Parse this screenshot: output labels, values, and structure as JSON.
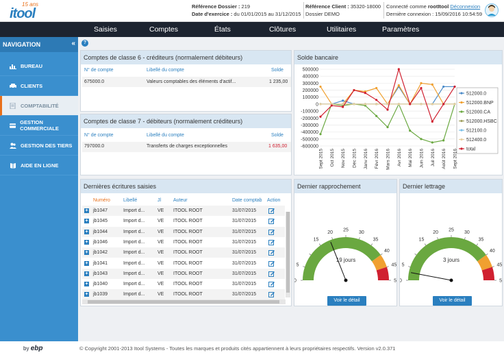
{
  "header": {
    "logo_ans": "15 ans",
    "logo_word": "itool",
    "ref_dossier_label": "Référence Dossier :",
    "ref_dossier_value": "219",
    "date_label": "Date d'exercice :",
    "date_value": "du 01/01/2015 au 31/12/2015",
    "ref_client_label": "Référence Client :",
    "ref_client_value": "35320-18000",
    "dossier_name": "Dossier DEMO",
    "connected_label": "Connecté comme",
    "connected_user": "rootItool",
    "logout": "Déconnexion",
    "last_login": "Dernière connexion : 15/09/2016 10:54:59"
  },
  "topnav": [
    "Saisies",
    "Comptes",
    "États",
    "Clôtures",
    "Utilitaires",
    "Paramètres"
  ],
  "sidebar": {
    "title": "NAVIGATION",
    "collapse": "«",
    "items": [
      {
        "label": "BUREAU",
        "icon": "chart-icon"
      },
      {
        "label": "CLIENTS",
        "icon": "car-icon"
      },
      {
        "label": "COMPTABILITÉ",
        "icon": "document-icon"
      },
      {
        "label": "GESTION COMMERCIALE",
        "icon": "card-icon"
      },
      {
        "label": "GESTION DES TIERS",
        "icon": "users-icon"
      },
      {
        "label": "AIDE EN LIGNE",
        "icon": "book-icon"
      }
    ]
  },
  "classe6": {
    "title": "Comptes de classe 6 - créditeurs (normalement débiteurs)",
    "col_num": "N° de compte",
    "col_label": "Libellé du compte",
    "col_solde": "Solde",
    "rows": [
      {
        "num": "675000.0",
        "label": "Valeurs comptables des éléments d'actif...",
        "solde": "1 235,00"
      }
    ]
  },
  "classe7": {
    "title": "Comptes de classe 7 - débiteurs (normalement créditeurs)",
    "col_num": "N° de compte",
    "col_label": "Libellé du compte",
    "col_solde": "Solde",
    "rows": [
      {
        "num": "797000.0",
        "label": "Transferts de charges exceptionnelles",
        "solde": "1 635,00"
      }
    ]
  },
  "ecritures": {
    "title": "Dernières écritures saisies",
    "columns": [
      "Numéro",
      "Libellé",
      "Jl",
      "Auteur",
      "Date comptab",
      "Action"
    ],
    "rows": [
      [
        "jb1047",
        "Import d...",
        "VE",
        "ITOOL ROOT",
        "31/07/2015"
      ],
      [
        "jb1045",
        "Import d...",
        "VE",
        "ITOOL ROOT",
        "31/07/2015"
      ],
      [
        "jb1044",
        "Import d...",
        "VE",
        "ITOOL ROOT",
        "31/07/2015"
      ],
      [
        "jb1046",
        "Import d...",
        "VE",
        "ITOOL ROOT",
        "31/07/2015"
      ],
      [
        "jb1042",
        "Import d...",
        "VE",
        "ITOOL ROOT",
        "31/07/2015"
      ],
      [
        "jb1041",
        "Import d...",
        "VE",
        "ITOOL ROOT",
        "31/07/2015"
      ],
      [
        "jb1043",
        "Import d...",
        "VE",
        "ITOOL ROOT",
        "31/07/2015"
      ],
      [
        "jb1040",
        "Import d...",
        "VE",
        "ITOOL ROOT",
        "31/07/2015"
      ],
      [
        "jb1039",
        "Import d...",
        "VE",
        "ITOOL ROOT",
        "31/07/2015"
      ]
    ]
  },
  "rapprochement": {
    "title": "Dernier rapprochement",
    "value_label": "19 jours",
    "value": 19,
    "button": "Voir le détail"
  },
  "lettrage": {
    "title": "Dernier lettrage",
    "value_label": "3 jours",
    "value": 3,
    "button": "Voir le détail"
  },
  "gauge_ticks": [
    "0",
    "5",
    "15",
    "20",
    "25",
    "30",
    "35",
    "40",
    "45",
    "50"
  ],
  "solde_title": "Solde bancaire",
  "chart_data": {
    "type": "line",
    "title": "Solde bancaire",
    "x": [
      "Sept 2015",
      "Oct 2015",
      "Nov 2015",
      "Déc 2015",
      "Janv 2016",
      "Févr 2016",
      "Mars 2016",
      "Avr 2016",
      "Mai 2016",
      "Juin 2016",
      "Juil 2016",
      "Août 2016",
      "Sept 2016"
    ],
    "yticks": [
      "500000",
      "400000",
      "300000",
      "200000",
      "100000",
      "0",
      "-100000",
      "-200000",
      "-300000",
      "-400000",
      "-500000",
      "-600000"
    ],
    "ylim": [
      -600000,
      500000
    ],
    "series": [
      {
        "name": "512000.0",
        "color": "#4a8ac8",
        "values": [
          0,
          0,
          50000,
          0,
          0,
          0,
          0,
          250000,
          0,
          0,
          0,
          250000,
          250000
        ]
      },
      {
        "name": "512000.BNP",
        "color": "#f0a030",
        "values": [
          250000,
          0,
          0,
          200000,
          180000,
          230000,
          0,
          270000,
          0,
          300000,
          280000,
          0,
          0
        ]
      },
      {
        "name": "512000.CA",
        "color": "#6aa840",
        "values": [
          -430000,
          0,
          -20000,
          0,
          -20000,
          -170000,
          -330000,
          0,
          -380000,
          -500000,
          -550000,
          -520000,
          0
        ]
      },
      {
        "name": "512000.HSBC",
        "color": "#a0a060",
        "values": [
          0,
          0,
          0,
          0,
          0,
          0,
          0,
          0,
          0,
          0,
          0,
          0,
          0
        ]
      },
      {
        "name": "512100.0",
        "color": "#7ac0e8",
        "values": [
          0,
          0,
          0,
          0,
          0,
          0,
          0,
          0,
          0,
          0,
          0,
          0,
          0
        ]
      },
      {
        "name": "512400.0",
        "color": "#e8d0a0",
        "values": [
          0,
          0,
          0,
          0,
          0,
          0,
          0,
          0,
          0,
          0,
          0,
          0,
          0
        ]
      },
      {
        "name": "total",
        "color": "#d02030",
        "values": [
          -180000,
          -20000,
          -40000,
          200000,
          160000,
          60000,
          -80000,
          500000,
          0,
          230000,
          -250000,
          0,
          250000
        ]
      }
    ]
  },
  "footer": {
    "by": "by",
    "brand": "ebp",
    "copyright": "© Copyright 2001-2013 Itool Systems - Toutes les marques et produits cités appartiennent à leurs propriétaires respectifs. Version v2.0.371"
  }
}
